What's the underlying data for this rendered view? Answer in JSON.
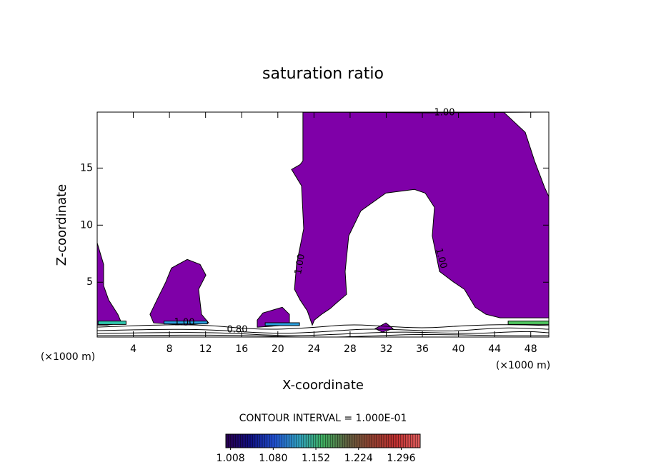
{
  "chart_data": {
    "type": "contour",
    "title": "saturation ratio",
    "x_label": "X-coordinate",
    "y_label": "Z-coordinate",
    "x_unit_labels": [
      "(×1000 m)",
      "(×1000 m)"
    ],
    "xlim": [
      0,
      50
    ],
    "ylim": [
      0.2,
      19.9
    ],
    "xticks": [
      4,
      8,
      12,
      16,
      20,
      24,
      28,
      32,
      36,
      40,
      44,
      48
    ],
    "yticks": [
      5,
      10,
      15
    ],
    "regions": [
      {
        "color": "#7f00a8",
        "x": [
          22.78,
          45.02,
          47.39,
          48.42,
          49.53,
          50,
          50,
          44.62,
          43.04,
          41.85,
          40.66,
          39.48,
          37.9,
          37.1,
          37.34,
          36.31,
          35.13,
          31.96,
          29.19,
          27.85,
          27.45,
          27.61,
          26.42,
          25.79,
          24.84,
          24.05,
          23.81,
          23.26,
          22.47,
          21.84,
          22.07,
          22.86,
          22.63,
          21.52,
          22.47,
          22.78
        ],
        "y": [
          19.88,
          19.88,
          18.13,
          15.63,
          13.31,
          12.5,
          1.88,
          1.88,
          2.19,
          2.81,
          4.38,
          5,
          5.94,
          9.06,
          11.56,
          12.81,
          13.13,
          12.81,
          11.25,
          9.06,
          5.94,
          3.94,
          3.13,
          2.69,
          2.19,
          1.69,
          1.25,
          2.5,
          3.44,
          4.38,
          6.56,
          9.69,
          13.44,
          14.88,
          15.31,
          15.63
        ]
      },
      {
        "color": "#7f00a8",
        "x": [
          0,
          0.71,
          0.71,
          1.27,
          2.29,
          2.69,
          1.11,
          0
        ],
        "y": [
          8.44,
          6.56,
          4.69,
          3.44,
          2.19,
          1.44,
          1.25,
          1.25
        ]
      },
      {
        "color": "#7f00a8",
        "x": [
          5.85,
          6.8,
          7.59,
          8.23,
          9.97,
          11.39,
          12.03,
          11.23,
          11.55,
          12.34,
          9.81,
          6.25
        ],
        "y": [
          2.19,
          3.75,
          5,
          6.25,
          7.0,
          6.56,
          5.63,
          4.38,
          2.19,
          1.44,
          1.25,
          1.44
        ]
      },
      {
        "color": "#7f00a8",
        "x": [
          17.72,
          18.35,
          20.49,
          21.28,
          21.28,
          17.72
        ],
        "y": [
          1.69,
          2.31,
          2.81,
          2.19,
          1.25,
          1.06
        ]
      },
      {
        "color": "#7f00a8",
        "x": [
          30.78,
          31.96,
          32.75,
          31.57
        ],
        "y": [
          0.94,
          1.44,
          0.94,
          0.63
        ]
      },
      {
        "color": "#30c8b0",
        "x": [
          0.1,
          3.2,
          3.2,
          0.1
        ],
        "y": [
          1.6,
          1.6,
          1.3,
          1.3
        ]
      },
      {
        "color": "#2aa0e0",
        "x": [
          7.4,
          12.2,
          12.2,
          7.4
        ],
        "y": [
          1.6,
          1.6,
          1.35,
          1.35
        ]
      },
      {
        "color": "#2aa0e0",
        "x": [
          18.6,
          22.4,
          22.4,
          18.6
        ],
        "y": [
          1.45,
          1.45,
          1.2,
          1.2
        ]
      },
      {
        "color": "#50c860",
        "x": [
          45.5,
          50,
          50,
          45.5
        ],
        "y": [
          1.6,
          1.6,
          1.3,
          1.3
        ]
      }
    ],
    "contour_labels": [
      "1.00",
      "1.00",
      "1.00",
      "1.00",
      "0.80"
    ],
    "contour_interval_label": "CONTOUR INTERVAL = 1.000E-01",
    "colorbar": {
      "lim": [
        1.0,
        1.328
      ],
      "ticks": [
        1.008,
        {
          "value": 1.08,
          "label": "1.080"
        },
        1.152,
        1.224,
        1.296
      ],
      "colors": [
        "#2a0050",
        "#101080",
        "#2050d0",
        "#30a0c0",
        "#40b060",
        "#606040",
        "#904030",
        "#c03030",
        "#e06060"
      ]
    }
  }
}
